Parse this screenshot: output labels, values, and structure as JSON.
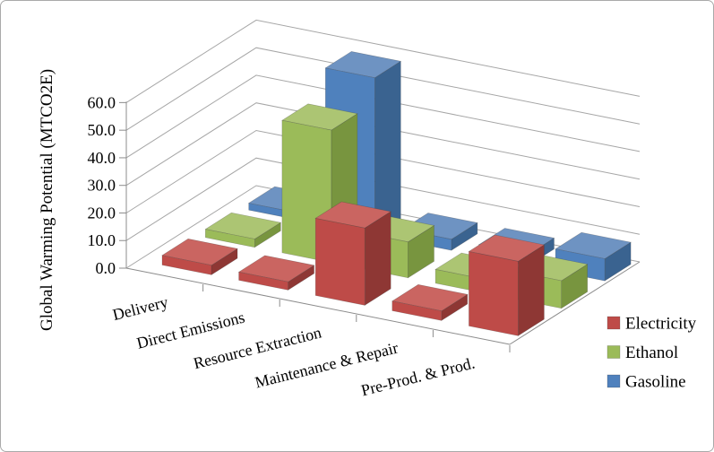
{
  "window": {
    "background": "#ffffff",
    "border_color": "#a9a9a9"
  },
  "chart_data": {
    "type": "bar",
    "projection": "3d-column",
    "title": "",
    "xlabel": "",
    "ylabel": "Global Warming Potential (MTCO2E)",
    "categories": [
      "Delivery",
      "Direct Emissions",
      "Resource Extraction",
      "Maintenance & Repair",
      "Pre-Prod. & Prod."
    ],
    "series": [
      {
        "name": "Electricity",
        "color": "#BE4B48",
        "color_top": "#CA6561",
        "color_side": "#8E3734",
        "values": [
          3.5,
          3,
          28,
          3.5,
          27
        ]
      },
      {
        "name": "Ethanol",
        "color": "#9BBB59",
        "color_top": "#ACC573",
        "color_side": "#78953F",
        "values": [
          3,
          48,
          13,
          5,
          10
        ]
      },
      {
        "name": "Gasoline",
        "color": "#4F81BD",
        "color_top": "#6E93C2",
        "color_side": "#3A6390",
        "values": [
          2.5,
          57,
          4,
          4,
          8
        ]
      }
    ],
    "ylim": [
      0,
      60
    ],
    "ytick_step": 10,
    "yticks": [
      "0.0",
      "10.0",
      "20.0",
      "30.0",
      "40.0",
      "50.0",
      "60.0"
    ],
    "grid": true,
    "legend_position": "right",
    "gridline_color": "#A6A6A6",
    "axis_color": "#8C8C8C",
    "text_color": "#000000"
  }
}
